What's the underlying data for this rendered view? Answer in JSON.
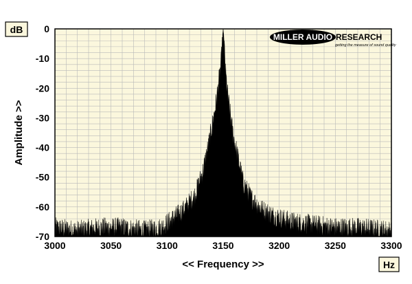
{
  "chart_data": {
    "type": "area",
    "xlabel": "<< Frequency >>",
    "ylabel": "Amplitude >>",
    "y_unit": "dB",
    "x_unit": "Hz",
    "xlim": [
      3000,
      3300
    ],
    "ylim": [
      -70,
      0
    ],
    "x_ticks": [
      3000,
      3050,
      3100,
      3150,
      3200,
      3250,
      3300
    ],
    "y_ticks": [
      0,
      -10,
      -20,
      -30,
      -40,
      -50,
      -60,
      -70
    ],
    "grid": true,
    "peak": {
      "x": 3150,
      "y": 0
    },
    "envelope": {
      "x": [
        3000,
        3020,
        3040,
        3060,
        3080,
        3095,
        3105,
        3115,
        3125,
        3132,
        3137,
        3141,
        3144,
        3146,
        3148,
        3149,
        3150,
        3151,
        3152,
        3154,
        3156,
        3159,
        3163,
        3168,
        3175,
        3185,
        3195,
        3210,
        3230,
        3250,
        3270,
        3300
      ],
      "y": [
        -65,
        -66,
        -65,
        -65,
        -66,
        -65,
        -62,
        -59,
        -54,
        -46,
        -37,
        -29,
        -22,
        -16,
        -10,
        -4,
        0,
        -4,
        -12,
        -20,
        -26,
        -34,
        -41,
        -50,
        -55,
        -59,
        -61,
        -63,
        -64,
        -65,
        -65,
        -66
      ]
    }
  },
  "legend_logo": {
    "main": "MILLER AUDIO",
    "side": "RESEARCH",
    "tagline": "getting the measure of sound quality"
  },
  "colors": {
    "plot_background": "#FBF7DD",
    "grid": "#B8B8B8",
    "fill": "#000000"
  }
}
